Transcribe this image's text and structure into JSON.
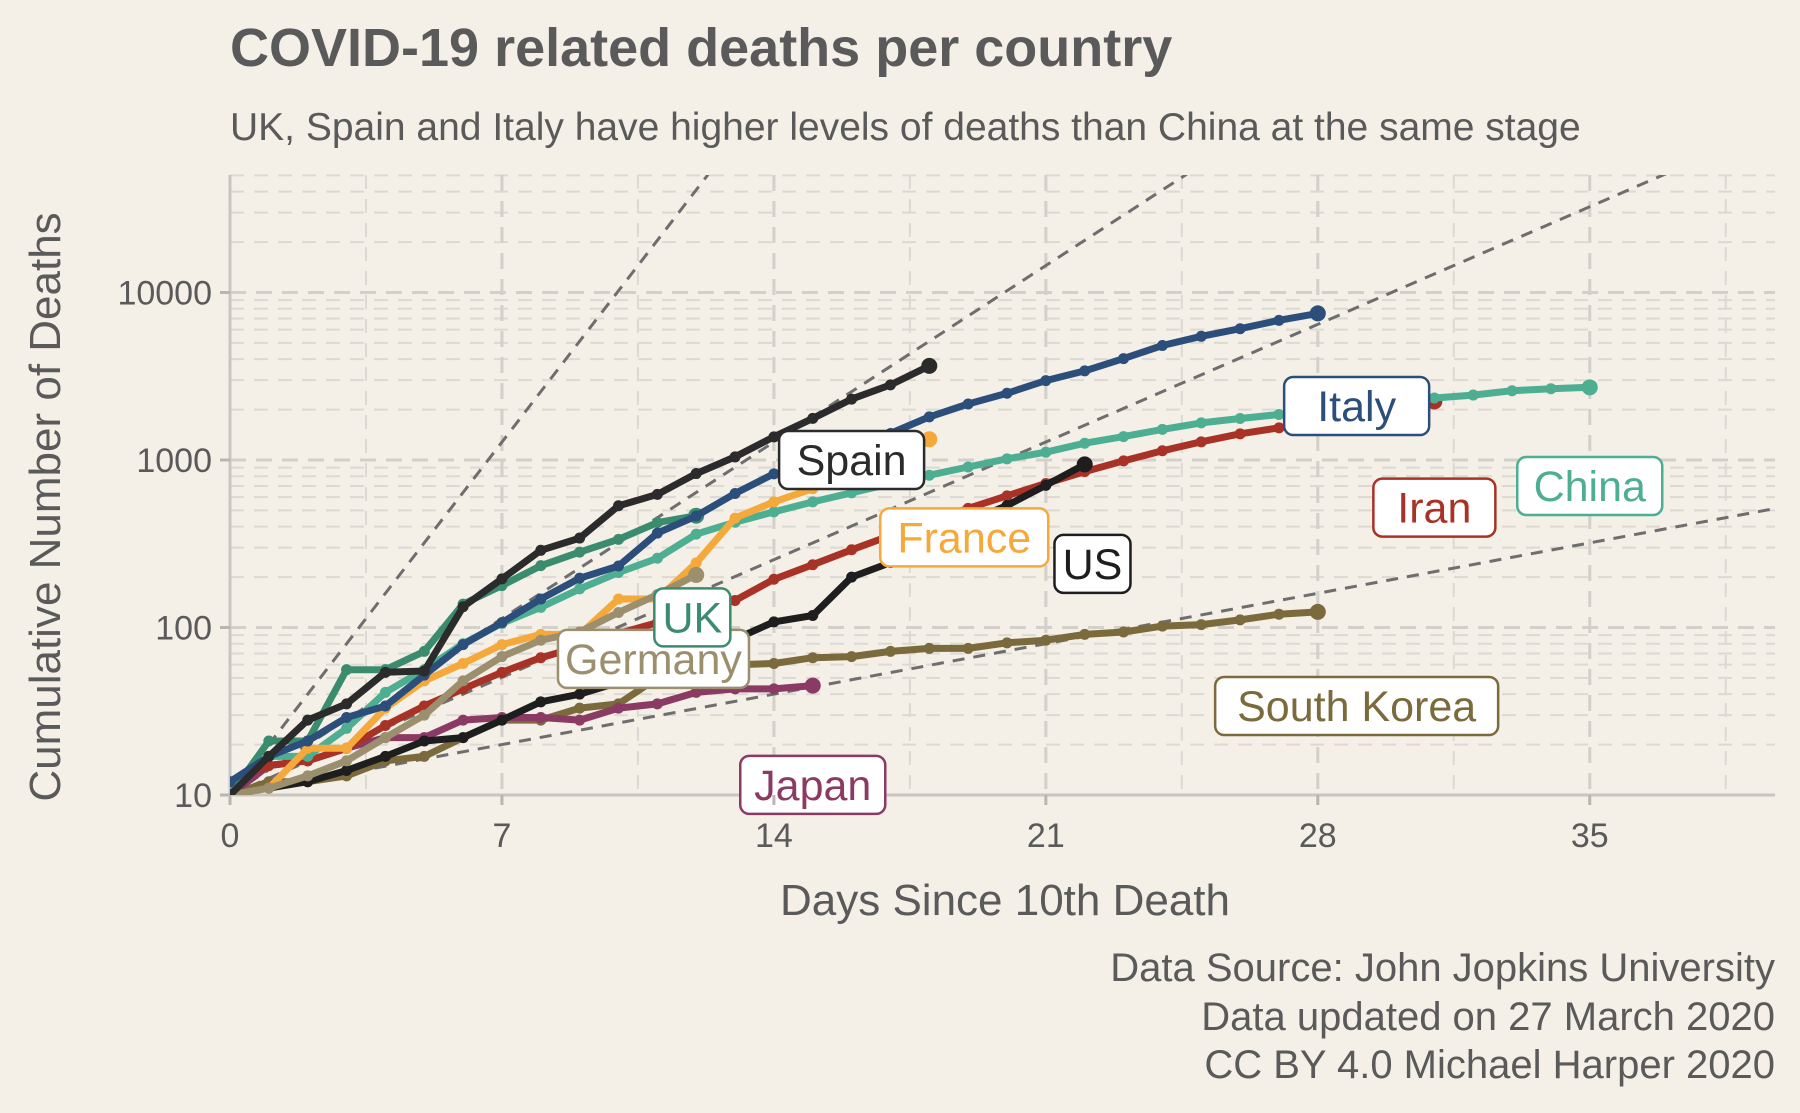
{
  "chart_data": {
    "type": "line",
    "title": "COVID-19 related deaths per country",
    "subtitle": "UK, Spain and Italy have higher levels of deaths than China at the same stage",
    "xlabel": "Days Since 10th Death",
    "ylabel": "Cumulative Number of Deaths",
    "xlim": [
      0,
      40
    ],
    "ylim": [
      10,
      50000
    ],
    "yscale": "log",
    "x_ticks": [
      "0",
      "7",
      "14",
      "21",
      "28",
      "35"
    ],
    "y_ticks": [
      "10",
      "100",
      "1000",
      "10000"
    ],
    "grid": true,
    "legend": "inline labels",
    "caption": [
      "Data Source: John Jopkins University",
      "Data updated on 27 March 2020",
      "CC BY 4.0 Michael Harper 2020"
    ],
    "reference_lines": [
      {
        "doubling_days": 1
      },
      {
        "doubling_days": 2
      },
      {
        "doubling_days": 3
      },
      {
        "doubling_days": 7
      }
    ],
    "series": [
      {
        "name": "South Korea",
        "color": "#7a6a3c",
        "values": [
          10,
          12,
          12,
          13,
          16,
          17,
          22,
          28,
          28,
          33,
          35,
          50,
          54,
          60,
          61,
          66,
          67,
          72,
          75,
          75,
          81,
          84,
          91,
          94,
          102,
          104,
          111,
          120,
          124
        ]
      },
      {
        "name": "Japan",
        "color": "#8b3a64",
        "values": [
          10,
          15,
          16,
          19,
          22,
          22,
          28,
          29,
          29,
          28,
          33,
          35,
          41,
          43,
          43,
          45
        ]
      },
      {
        "name": "Iran",
        "color": "#a93226",
        "values": [
          12,
          15,
          16,
          19,
          26,
          34,
          43,
          54,
          66,
          77,
          92,
          107,
          124,
          145,
          194,
          237,
          291,
          354,
          429,
          514,
          611,
          724,
          853,
          988,
          1135,
          1284,
          1433,
          1556,
          1685,
          1812,
          2077,
          2234
        ]
      },
      {
        "name": "China",
        "color": "#4dae92",
        "values": [
          10,
          17,
          17,
          25,
          41,
          56,
          80,
          106,
          132,
          170,
          213,
          259,
          361,
          425,
          490,
          562,
          637,
          722,
          811,
          908,
          1016,
          1113,
          1259,
          1380,
          1523,
          1665,
          1770,
          1868,
          2004,
          2118,
          2236,
          2345,
          2442,
          2592,
          2663,
          2715
        ]
      },
      {
        "name": "US",
        "color": "#1e1e1e",
        "values": [
          10,
          11,
          12,
          14,
          17,
          21,
          22,
          28,
          36,
          40,
          47,
          54,
          63,
          85,
          108,
          118,
          200,
          244,
          307,
          427,
          535,
          706,
          941
        ]
      },
      {
        "name": "France",
        "color": "#f5a93b",
        "values": [
          10,
          11,
          19,
          19,
          33,
          48,
          61,
          79,
          91,
          91,
          148,
          148,
          243,
          450,
          562,
          674,
          860,
          1100,
          1331
        ]
      },
      {
        "name": "Germany",
        "color": "#9b8f6e",
        "values": [
          10,
          11,
          13,
          16,
          22,
          30,
          48,
          67,
          84,
          94,
          123,
          157,
          206
        ]
      },
      {
        "name": "UK",
        "color": "#3b8c6e",
        "values": [
          10,
          21,
          21,
          56,
          56,
          72,
          138,
          178,
          234,
          282,
          336,
          423,
          465
        ]
      },
      {
        "name": "Italy",
        "color": "#2c4e7a",
        "values": [
          12,
          17,
          21,
          29,
          34,
          52,
          79,
          107,
          148,
          197,
          233,
          366,
          463,
          631,
          827,
          827,
          1266,
          1441,
          1809,
          2158,
          2503,
          2978,
          3405,
          4032,
          4825,
          5476,
          6077,
          6820,
          7503
        ]
      },
      {
        "name": "Spain",
        "color": "#2b2b2b",
        "values": [
          10,
          17,
          28,
          35,
          54,
          55,
          133,
          195,
          289,
          342,
          533,
          623,
          830,
          1043,
          1375,
          1772,
          2311,
          2808,
          3647
        ]
      }
    ]
  }
}
